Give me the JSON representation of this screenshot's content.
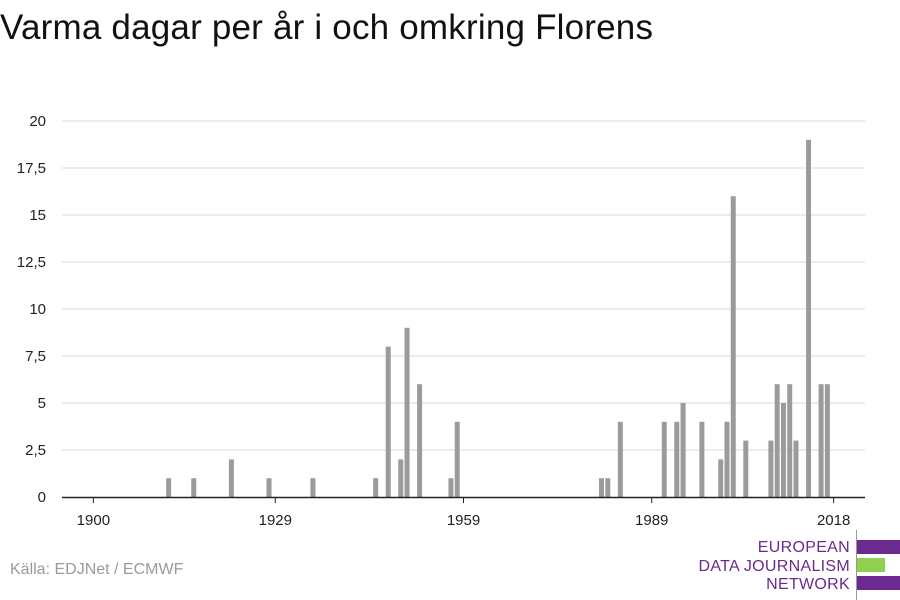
{
  "title": "Varma dagar per år i och omkring Florens",
  "source": "Källa: EDJNet / ECMWF",
  "logo": {
    "lines": [
      "EUROPEAN",
      "DATA JOURNALISM",
      "NETWORK"
    ],
    "colors": {
      "purple": "#6a2a8f",
      "green": "#8fd14f"
    }
  },
  "colors": {
    "bar": "#9b9b9b",
    "grid": "#d9d9d9",
    "axis": "#222222",
    "text": "#222222"
  },
  "chart_data": {
    "type": "bar",
    "title": "Varma dagar per år i och omkring Florens",
    "xlabel": "",
    "ylabel": "",
    "xlim": [
      1900,
      2018
    ],
    "ylim": [
      0,
      20
    ],
    "grid": true,
    "x_ticks": [
      1900,
      1929,
      1959,
      1989,
      2018
    ],
    "x_tick_labels": [
      "1900",
      "1929",
      "1959",
      "1989",
      "2018"
    ],
    "y_ticks": [
      0,
      2.5,
      5,
      7.5,
      10,
      12.5,
      15,
      17.5,
      20
    ],
    "y_tick_labels": [
      "0",
      "2,5",
      "5",
      "7,5",
      "10",
      "12,5",
      "15",
      "17,5",
      "20"
    ],
    "x": [
      1912,
      1916,
      1922,
      1928,
      1935,
      1945,
      1947,
      1949,
      1950,
      1952,
      1957,
      1958,
      1981,
      1982,
      1984,
      1991,
      1993,
      1994,
      1997,
      2000,
      2001,
      2002,
      2004,
      2008,
      2009,
      2010,
      2011,
      2012,
      2014,
      2016,
      2017
    ],
    "values": [
      1,
      1,
      2,
      1,
      1,
      1,
      8,
      2,
      9,
      6,
      1,
      4,
      1,
      1,
      4,
      4,
      4,
      5,
      4,
      2,
      4,
      16,
      3,
      3,
      6,
      5,
      6,
      3,
      19,
      6,
      6
    ]
  }
}
